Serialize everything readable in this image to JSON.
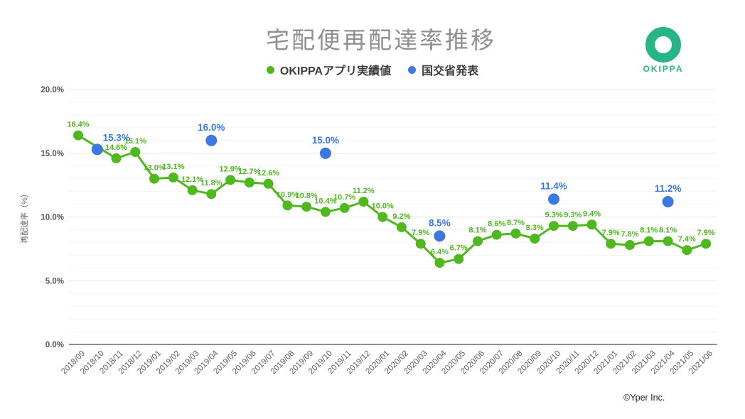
{
  "title": "宅配便再配達率推移",
  "logo": {
    "brand": "OKIPPA",
    "color": "#25b586"
  },
  "footer": {
    "copyright": "©Yper Inc."
  },
  "colors": {
    "okippa_green": "#4fb81e",
    "mlit_blue": "#3c78e2",
    "title_gray": "#8f8f8f"
  },
  "chart_data": {
    "type": "line",
    "title": "宅配便再配達率推移",
    "xlabel": "",
    "ylabel": "再配達率（%）",
    "ylim": [
      0,
      20
    ],
    "yticks": [
      0,
      5,
      10,
      15,
      20
    ],
    "ytick_labels": [
      "0.0%",
      "5.0%",
      "10.0%",
      "15.0%",
      "20.0%"
    ],
    "grid": true,
    "legend_position": "top",
    "x": [
      "2018/09",
      "2018/10",
      "2018/11",
      "2018/12",
      "2019/01",
      "2019/02",
      "2019/03",
      "2019/04",
      "2019/05",
      "2019/06",
      "2019/07",
      "2019/08",
      "2019/09",
      "2019/10",
      "2019/11",
      "2019/12",
      "2020/01",
      "2020/02",
      "2020/03",
      "2020/04",
      "2020/05",
      "2020/06",
      "2020/07",
      "2020/08",
      "2020/09",
      "2020/10",
      "2020/11",
      "2020/12",
      "2021/01",
      "2021/02",
      "2021/03",
      "2021/04",
      "2021/05",
      "2021/06"
    ],
    "series": [
      {
        "name": "OKIPPAアプリ実績値",
        "type": "line",
        "color": "#4fb81e",
        "values": [
          16.4,
          null,
          14.6,
          15.1,
          13.0,
          13.1,
          12.1,
          11.8,
          12.9,
          12.7,
          12.6,
          10.9,
          10.8,
          10.4,
          10.7,
          11.2,
          10.0,
          9.2,
          7.9,
          6.4,
          6.7,
          8.1,
          8.6,
          8.7,
          8.3,
          9.3,
          9.3,
          9.4,
          7.9,
          7.8,
          8.1,
          8.1,
          7.4,
          7.9
        ]
      },
      {
        "name": "国交省発表",
        "type": "scatter",
        "color": "#3c78e2",
        "points": [
          {
            "x": "2018/10",
            "y": 15.3,
            "label_dx": 27,
            "label_dy": 2
          },
          {
            "x": "2019/04",
            "y": 16.0
          },
          {
            "x": "2019/10",
            "y": 15.0
          },
          {
            "x": "2020/04",
            "y": 8.5
          },
          {
            "x": "2020/10",
            "y": 11.4
          },
          {
            "x": "2021/04",
            "y": 11.2
          }
        ]
      }
    ]
  }
}
